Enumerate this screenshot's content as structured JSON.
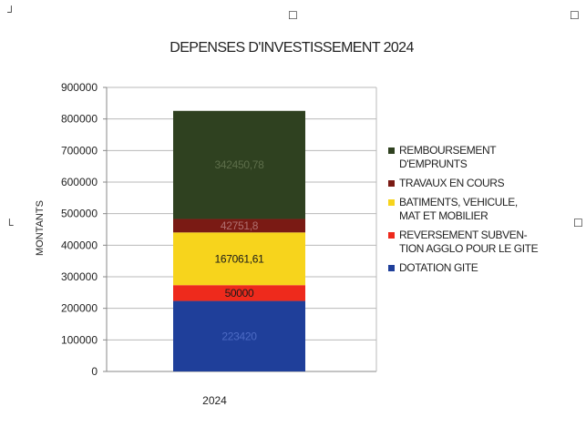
{
  "chart_data": {
    "type": "bar",
    "stacked": true,
    "title": "DEPENSES D'INVESTISSEMENT 2024",
    "xlabel": "",
    "ylabel": "MONTANTS",
    "ylim": [
      0,
      900000
    ],
    "yticks": [
      "0",
      "100000",
      "200000",
      "300000",
      "400000",
      "500000",
      "600000",
      "700000",
      "800000",
      "900000"
    ],
    "categories": [
      "2024"
    ],
    "grid": true,
    "legend_position": "right",
    "series": [
      {
        "name": "DOTATION GITE",
        "values": [
          223420
        ],
        "label": "223420",
        "color": "#1f3f9a",
        "label_color": "#4d6bc4"
      },
      {
        "name": "REVERSEMENT SUBVEN-\nTION AGGLO POUR LE GITE",
        "values": [
          50000
        ],
        "label": "50000",
        "color": "#ee2a1c",
        "label_color": "#1a1a1a"
      },
      {
        "name": "BATIMENTS, VEHICULE,\nMAT ET MOBILIER",
        "values": [
          167061.61
        ],
        "label": "167061,61",
        "color": "#f7d41c",
        "label_color": "#1a1a1a"
      },
      {
        "name": "TRAVAUX EN COURS",
        "values": [
          42751.8
        ],
        "label": "42751,8",
        "color": "#7a1a14",
        "label_color": "#b07070"
      },
      {
        "name": "REMBOURSEMENT\nD'EMPRUNTS",
        "values": [
          342450.78
        ],
        "label": "342450,78",
        "color": "#2f4120",
        "label_color": "#5d6e4a"
      }
    ]
  },
  "legend_order": [
    4,
    3,
    2,
    1,
    0
  ]
}
